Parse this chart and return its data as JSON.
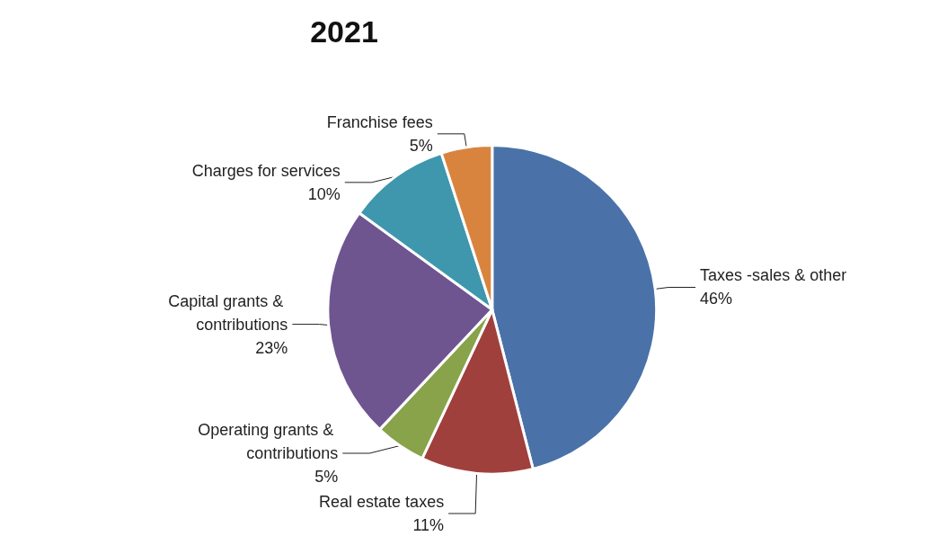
{
  "chart_data": {
    "type": "pie",
    "title": "2021",
    "categories": [
      "Taxes -sales & other",
      "Real estate taxes",
      "Operating grants & contributions",
      "Capital grants & contributions",
      "Charges for services",
      "Franchise fees"
    ],
    "values": [
      46,
      11,
      5,
      23,
      10,
      5
    ],
    "value_labels": [
      "46%",
      "11%",
      "5%",
      "23%",
      "10%",
      "5%"
    ],
    "colors": [
      "#4a72a8",
      "#a0403d",
      "#88a34a",
      "#6e5590",
      "#3e97ad",
      "#d9843e"
    ],
    "legend": false
  }
}
